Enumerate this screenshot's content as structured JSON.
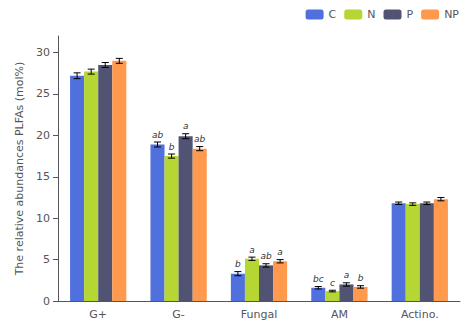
{
  "chart_data": {
    "type": "bar",
    "categories": [
      "G+",
      "G-",
      "Fungal",
      "AM",
      "Actino."
    ],
    "series": [
      {
        "name": "C",
        "values": [
          27.2,
          18.9,
          3.3,
          1.6,
          11.8
        ],
        "errors": [
          0.35,
          0.3,
          0.25,
          0.15,
          0.15
        ]
      },
      {
        "name": "N",
        "values": [
          27.7,
          17.5,
          5.1,
          1.2,
          11.7
        ],
        "errors": [
          0.3,
          0.25,
          0.2,
          0.1,
          0.15
        ]
      },
      {
        "name": "P",
        "values": [
          28.5,
          19.9,
          4.3,
          2.0,
          11.8
        ],
        "errors": [
          0.3,
          0.3,
          0.2,
          0.2,
          0.15
        ]
      },
      {
        "name": "NP",
        "values": [
          29.0,
          18.4,
          4.8,
          1.7,
          12.3
        ],
        "errors": [
          0.3,
          0.25,
          0.2,
          0.15,
          0.2
        ]
      }
    ],
    "annotations": [
      {
        "category": "G-",
        "series": "C",
        "text": "ab"
      },
      {
        "category": "G-",
        "series": "N",
        "text": "b"
      },
      {
        "category": "G-",
        "series": "P",
        "text": "a"
      },
      {
        "category": "G-",
        "series": "NP",
        "text": "ab"
      },
      {
        "category": "Fungal",
        "series": "C",
        "text": "b"
      },
      {
        "category": "Fungal",
        "series": "N",
        "text": "a"
      },
      {
        "category": "Fungal",
        "series": "P",
        "text": "ab"
      },
      {
        "category": "Fungal",
        "series": "NP",
        "text": "a"
      },
      {
        "category": "AM",
        "series": "C",
        "text": "bc"
      },
      {
        "category": "AM",
        "series": "N",
        "text": "c"
      },
      {
        "category": "AM",
        "series": "P",
        "text": "a"
      },
      {
        "category": "AM",
        "series": "NP",
        "text": "b"
      }
    ],
    "ylabel": "The relative abundances PLFAs (mol%)",
    "ylim": [
      0,
      32
    ],
    "yticks": [
      0,
      5,
      10,
      15,
      20,
      25,
      30
    ],
    "legend": "upper right",
    "grid": false
  }
}
